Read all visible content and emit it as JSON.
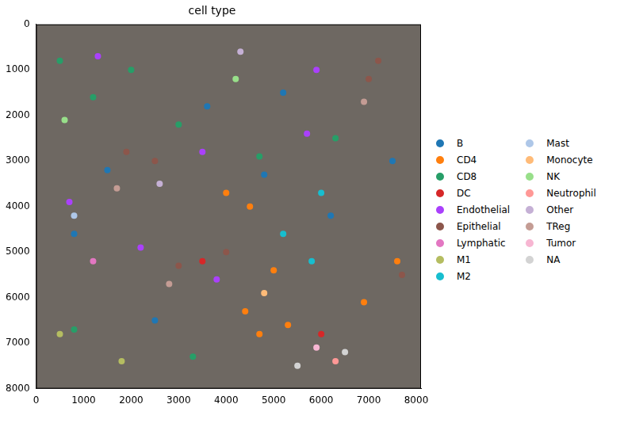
{
  "chart_data": {
    "type": "scatter",
    "title": "cell type",
    "xlim": [
      0,
      8100
    ],
    "ylim": [
      8000,
      0
    ],
    "xticks": [
      0,
      1000,
      2000,
      3000,
      4000,
      5000,
      6000,
      7000,
      8000
    ],
    "yticks": [
      0,
      1000,
      2000,
      3000,
      4000,
      5000,
      6000,
      7000,
      8000
    ],
    "legend": "right",
    "grid": false,
    "series": [
      {
        "name": "B",
        "color": "#1f77b4",
        "x": [
          1500,
          5200,
          7500,
          2500,
          6200,
          800,
          3600,
          4800
        ],
        "y": [
          3200,
          1500,
          3000,
          6500,
          4200,
          4600,
          1800,
          3300
        ]
      },
      {
        "name": "CD4",
        "color": "#ff7f0e",
        "x": [
          4700,
          4500,
          7600,
          5300,
          4000,
          6900,
          4400,
          5000
        ],
        "y": [
          6800,
          4000,
          5200,
          6600,
          3700,
          6100,
          6300,
          5400
        ]
      },
      {
        "name": "CD8",
        "color": "#279e68",
        "x": [
          500,
          2000,
          3000,
          800,
          3300,
          6300,
          1200,
          4700
        ],
        "y": [
          800,
          1000,
          2200,
          6700,
          7300,
          2500,
          1600,
          2900
        ]
      },
      {
        "name": "DC",
        "color": "#d62728",
        "x": [
          3500,
          6000
        ],
        "y": [
          5200,
          6800
        ]
      },
      {
        "name": "Endothelial",
        "color": "#aa40fc",
        "x": [
          1300,
          3500,
          5700,
          2200,
          5900,
          3800,
          700
        ],
        "y": [
          700,
          2800,
          2400,
          4900,
          1000,
          5600,
          3900
        ]
      },
      {
        "name": "Epithelial",
        "color": "#8c564b",
        "x": [
          2500,
          3000,
          7000,
          7700,
          4000,
          1900,
          7200
        ],
        "y": [
          3000,
          5300,
          1200,
          5500,
          5000,
          2800,
          800
        ]
      },
      {
        "name": "Lymphatic",
        "color": "#e377c2",
        "x": [
          1200
        ],
        "y": [
          5200
        ]
      },
      {
        "name": "M1",
        "color": "#b5bd61",
        "x": [
          500,
          1800
        ],
        "y": [
          6800,
          7400
        ]
      },
      {
        "name": "M2",
        "color": "#17becf",
        "x": [
          5200,
          6000,
          5800
        ],
        "y": [
          4600,
          3700,
          5200
        ]
      },
      {
        "name": "Mast",
        "color": "#aec7e8",
        "x": [
          800
        ],
        "y": [
          4200
        ]
      },
      {
        "name": "Monocyte",
        "color": "#ffbb78",
        "x": [
          4800
        ],
        "y": [
          5900
        ]
      },
      {
        "name": "NK",
        "color": "#98df8a",
        "x": [
          600,
          4200
        ],
        "y": [
          2100,
          1200
        ]
      },
      {
        "name": "Neutrophil",
        "color": "#ff9896",
        "x": [
          6300
        ],
        "y": [
          7400
        ]
      },
      {
        "name": "Other",
        "color": "#c5b0d5",
        "x": [
          2600,
          4300
        ],
        "y": [
          3500,
          600
        ]
      },
      {
        "name": "TReg",
        "color": "#c49c94",
        "x": [
          2800,
          6900,
          1700
        ],
        "y": [
          5700,
          1700,
          3600
        ]
      },
      {
        "name": "Tumor",
        "color": "#f7b6d2",
        "x": [
          5900
        ],
        "y": [
          7100
        ]
      },
      {
        "name": "NA",
        "color": "#d3d3d3",
        "x": [
          5500,
          6500
        ],
        "y": [
          7500,
          7200
        ]
      }
    ]
  }
}
